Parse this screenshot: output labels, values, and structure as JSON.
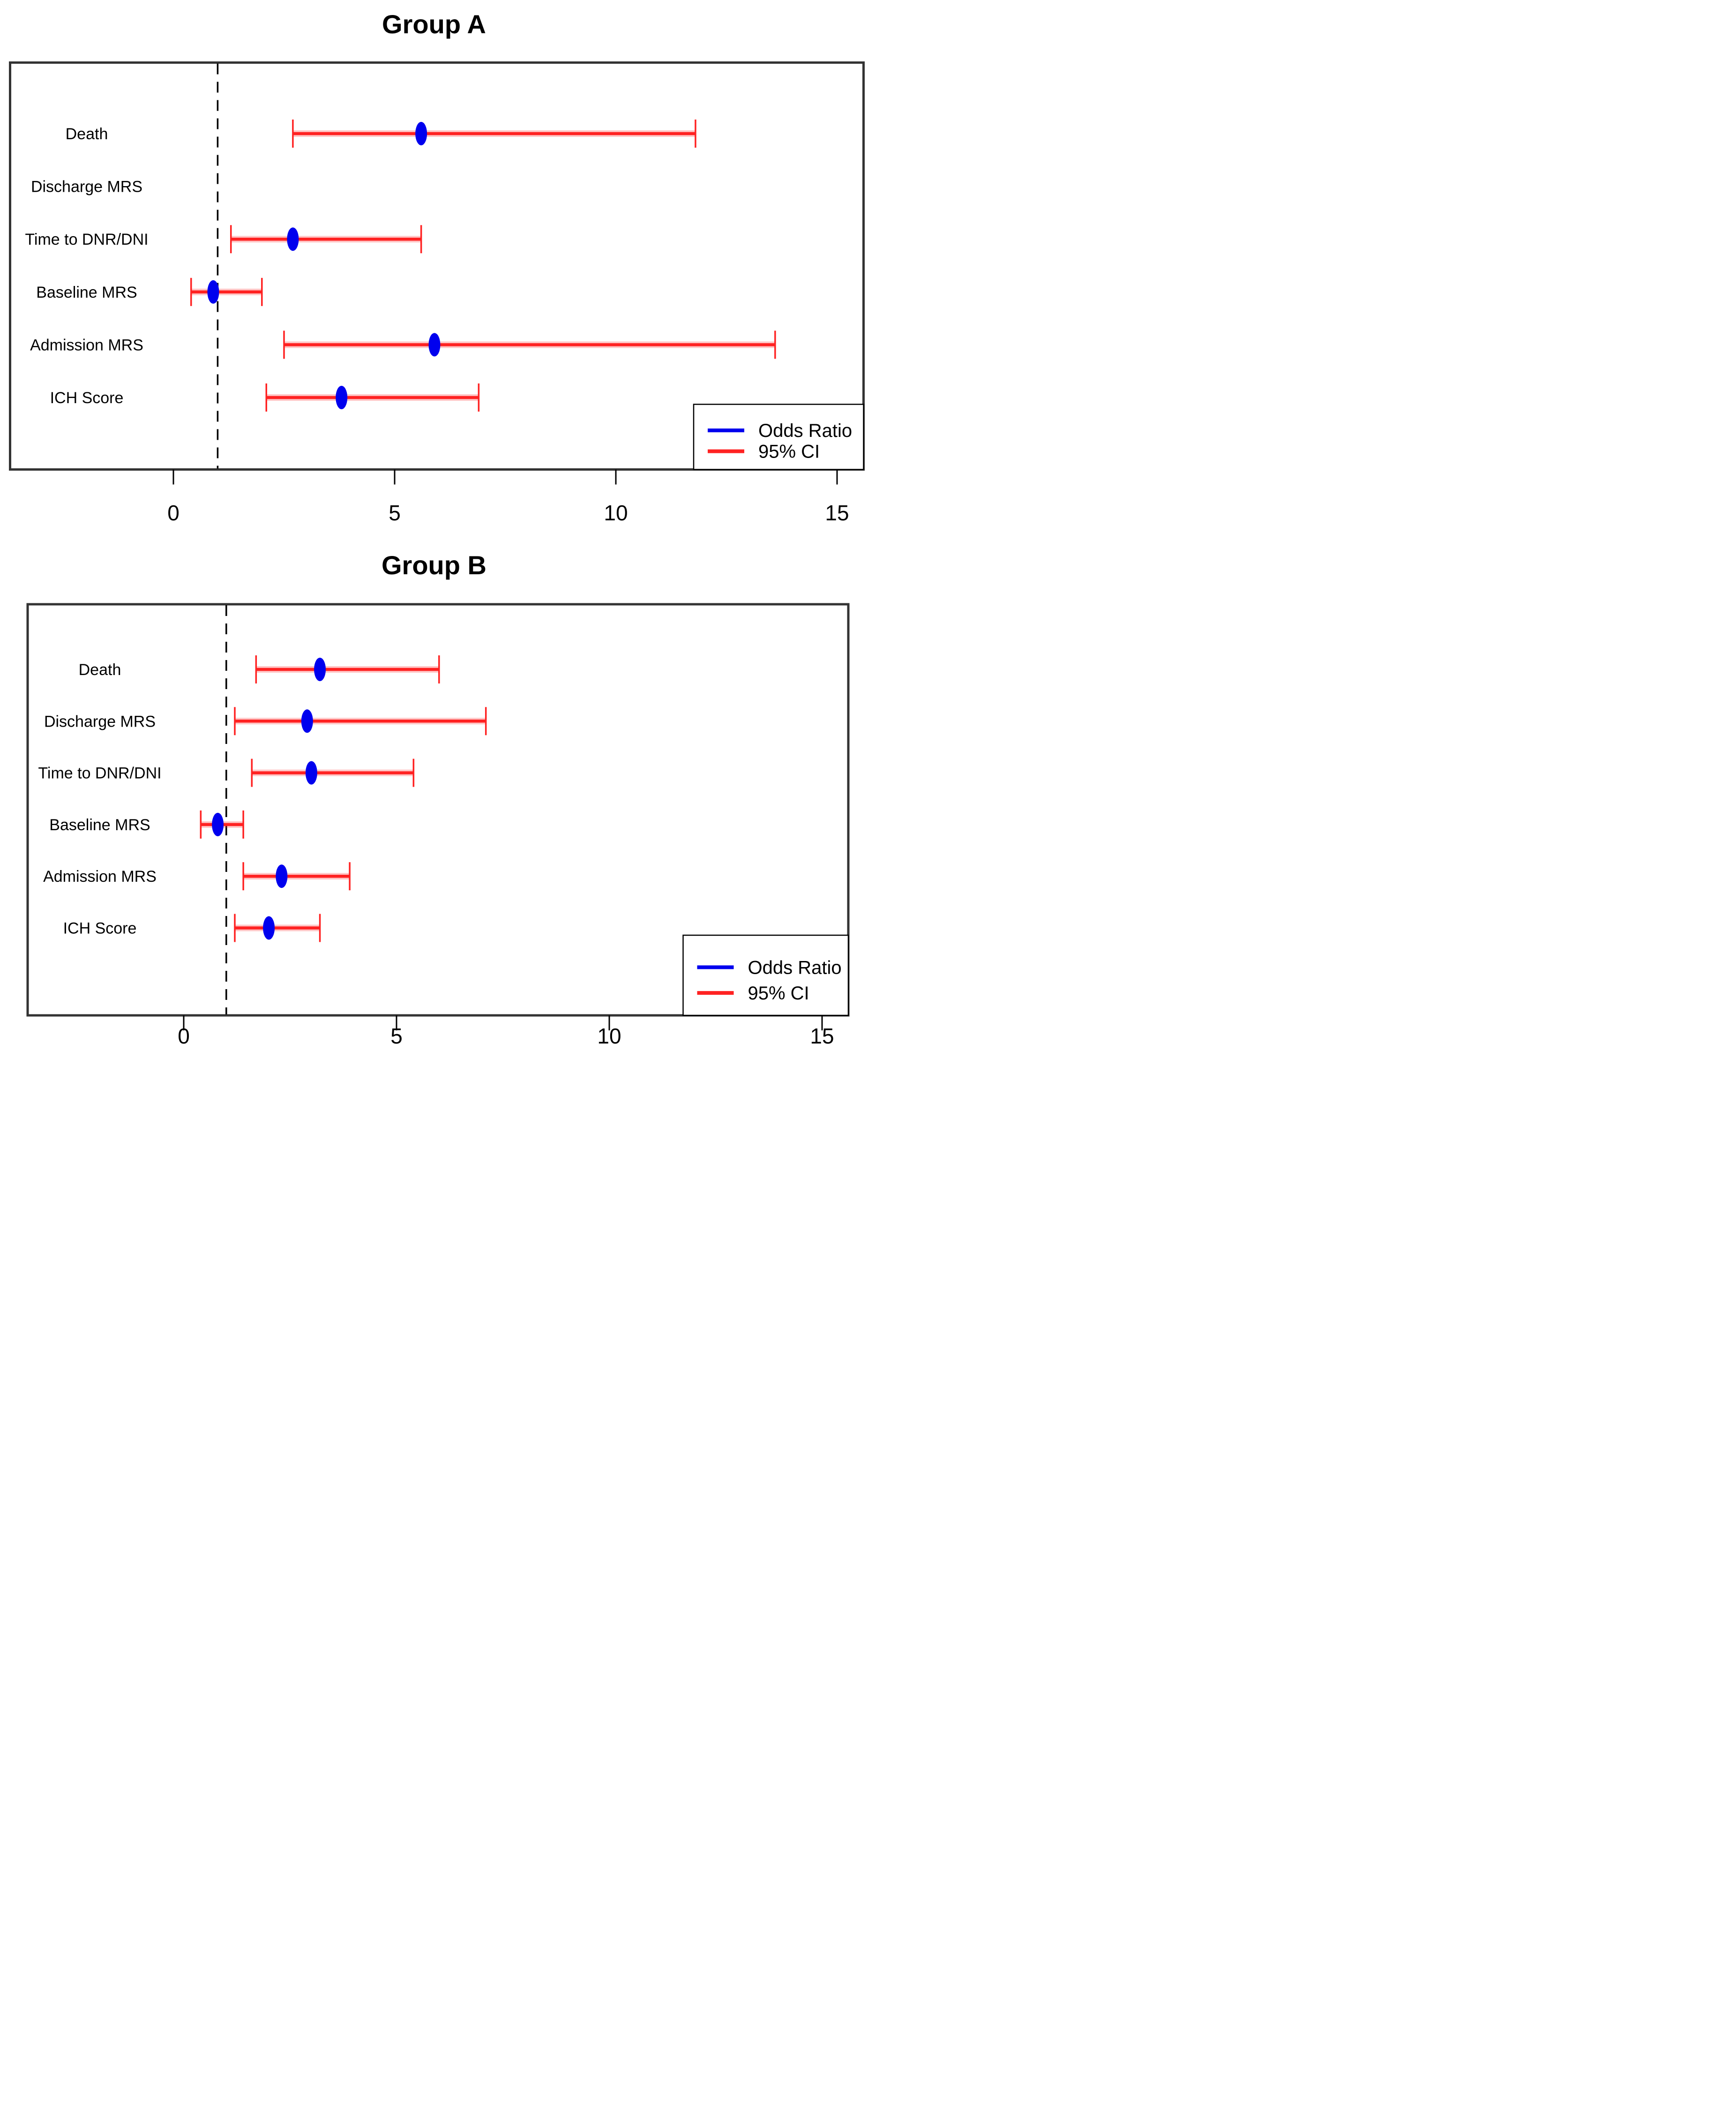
{
  "colors": {
    "odds_ratio_blue": "#0000ee",
    "ci_red": "#ff2222",
    "reference_line": "#000000",
    "plot_border": "#333333",
    "text": "#000000",
    "background": "#ffffff"
  },
  "chart_data": [
    {
      "type": "scatter",
      "subtype": "forest-plot",
      "title": "Group A",
      "xlabel": "",
      "ylabel": "",
      "xticks": [
        0,
        5,
        10,
        15
      ],
      "xlim": [
        -3.7,
        15.6
      ],
      "reference_line_x": 1,
      "grid": false,
      "legend_position": "bottom-right",
      "legend": [
        {
          "label": "Odds Ratio",
          "series": "odds_ratio"
        },
        {
          "label": "95% CI",
          "series": "ci"
        }
      ],
      "rows": [
        {
          "label": "Death",
          "odds_ratio": 5.6,
          "ci_low": 2.7,
          "ci_high": 11.8
        },
        {
          "label": "Discharge MRS",
          "odds_ratio": null,
          "ci_low": null,
          "ci_high": null
        },
        {
          "label": "Time to DNR/DNI",
          "odds_ratio": 2.7,
          "ci_low": 1.3,
          "ci_high": 5.6
        },
        {
          "label": "Baseline MRS",
          "odds_ratio": 0.9,
          "ci_low": 0.4,
          "ci_high": 2.0
        },
        {
          "label": "Admission MRS",
          "odds_ratio": 5.9,
          "ci_low": 2.5,
          "ci_high": 13.6
        },
        {
          "label": "ICH Score",
          "odds_ratio": 3.8,
          "ci_low": 2.1,
          "ci_high": 6.9
        }
      ]
    },
    {
      "type": "scatter",
      "subtype": "forest-plot",
      "title": "Group B",
      "xlabel": "",
      "ylabel": "",
      "xticks": [
        0,
        5,
        10,
        15
      ],
      "xlim": [
        -3.7,
        15.6
      ],
      "reference_line_x": 1,
      "grid": false,
      "legend_position": "bottom-right",
      "legend": [
        {
          "label": "Odds Ratio",
          "series": "odds_ratio"
        },
        {
          "label": "95% CI",
          "series": "ci"
        }
      ],
      "rows": [
        {
          "label": "Death",
          "odds_ratio": 3.2,
          "ci_low": 1.7,
          "ci_high": 6.0
        },
        {
          "label": "Discharge MRS",
          "odds_ratio": 2.9,
          "ci_low": 1.2,
          "ci_high": 7.1
        },
        {
          "label": "Time to DNR/DNI",
          "odds_ratio": 3.0,
          "ci_low": 1.6,
          "ci_high": 5.4
        },
        {
          "label": "Baseline MRS",
          "odds_ratio": 0.8,
          "ci_low": 0.4,
          "ci_high": 1.4
        },
        {
          "label": "Admission MRS",
          "odds_ratio": 2.3,
          "ci_low": 1.4,
          "ci_high": 3.9
        },
        {
          "label": "ICH Score",
          "odds_ratio": 2.0,
          "ci_low": 1.2,
          "ci_high": 3.2
        }
      ]
    }
  ]
}
